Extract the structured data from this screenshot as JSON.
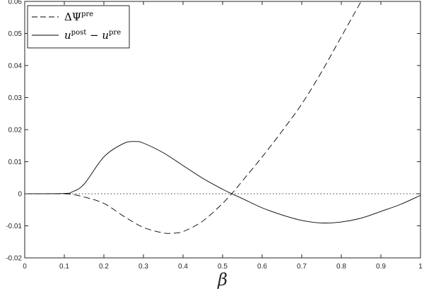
{
  "chart_data": {
    "type": "line",
    "title": "",
    "xlabel": "β",
    "ylabel": "",
    "xlim": [
      0,
      1
    ],
    "ylim": [
      -0.02,
      0.06
    ],
    "x_ticks": [
      0,
      0.1,
      0.2,
      0.3,
      0.4,
      0.5,
      0.6,
      0.7,
      0.8,
      0.9,
      1
    ],
    "x_tick_labels": [
      "0",
      "0.1",
      "0.2",
      "0.3",
      "0.4",
      "0.5",
      "0.6",
      "0.7",
      "0.8",
      "0.9",
      "1"
    ],
    "y_ticks": [
      -0.02,
      -0.01,
      0,
      0.01,
      0.02,
      0.03,
      0.04,
      0.05,
      0.06
    ],
    "y_tick_labels": [
      "-0.02",
      "-0.01",
      "0",
      "0.01",
      "0.02",
      "0.03",
      "0.04",
      "0.05",
      "0.06"
    ],
    "grid": false,
    "legend_position": "top-left",
    "series": [
      {
        "name": "ΔΨ^pre",
        "style": "dashed",
        "color": "#000000",
        "x": [
          0,
          0.1,
          0.12,
          0.15,
          0.2,
          0.25,
          0.3,
          0.35,
          0.37,
          0.4,
          0.45,
          0.5,
          0.53,
          0.55,
          0.6,
          0.65,
          0.7,
          0.75,
          0.8,
          0.85
        ],
        "y": [
          0,
          0,
          -0.0002,
          -0.001,
          -0.003,
          -0.007,
          -0.0105,
          -0.0122,
          -0.0123,
          -0.0118,
          -0.0085,
          -0.003,
          0.001,
          0.004,
          0.0115,
          0.0195,
          0.028,
          0.038,
          0.049,
          0.06
        ]
      },
      {
        "name": "u^post − u^pre",
        "style": "solid",
        "color": "#000000",
        "x": [
          0,
          0.1,
          0.12,
          0.15,
          0.2,
          0.25,
          0.28,
          0.3,
          0.35,
          0.4,
          0.45,
          0.5,
          0.52,
          0.55,
          0.6,
          0.65,
          0.7,
          0.75,
          0.8,
          0.85,
          0.9,
          0.95,
          1
        ],
        "y": [
          0,
          0.0001,
          0.0006,
          0.003,
          0.0115,
          0.0157,
          0.0163,
          0.0158,
          0.0128,
          0.0088,
          0.0048,
          0.0014,
          0.0002,
          -0.0015,
          -0.0044,
          -0.0066,
          -0.0083,
          -0.0091,
          -0.0088,
          -0.0076,
          -0.0055,
          -0.0033,
          -0.0005
        ]
      }
    ],
    "reference_line": {
      "y": 0,
      "style": "dotted"
    }
  },
  "legend": {
    "dashed_base": "ΔΨ",
    "dashed_sup": "pre",
    "solid_u1": "u",
    "solid_sup1": "post",
    "solid_minus": " − ",
    "solid_u2": "u",
    "solid_sup2": "pre"
  }
}
